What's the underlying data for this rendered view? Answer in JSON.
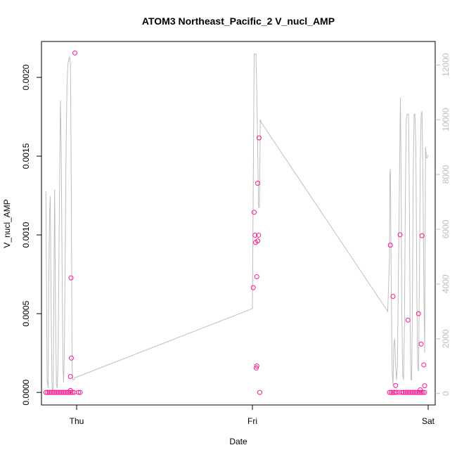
{
  "chart_data": {
    "type": "scatter",
    "title": "ATOM3 Northeast_Pacific_2 V_nucl_AMP",
    "xlabel": "Date",
    "ylabel": "V_nucl_AMP",
    "x_ticks": [
      "Thu",
      "Fri",
      "Sat"
    ],
    "y_ticks_left": [
      "0.0000",
      "0.0005",
      "0.0010",
      "0.0015",
      "0.0020"
    ],
    "y_ticks_right": [
      "0",
      "2000",
      "4000",
      "6000",
      "8000",
      "10000",
      "12000"
    ],
    "x_range": [
      -0.2,
      2.04
    ],
    "ylim_left": [
      -7.97e-05,
      0.0022279
    ],
    "ylim_right": [
      -418,
      12854
    ],
    "grid": false,
    "legend": "none",
    "colors": {
      "points": "#ff1493",
      "line": "#bebebe",
      "right_axis": "#bdbdbd"
    },
    "series": [
      {
        "axis": "left",
        "style": "points",
        "points": [
          [
            -0.175,
            0
          ],
          [
            -0.165,
            0
          ],
          [
            -0.155,
            0
          ],
          [
            -0.145,
            0
          ],
          [
            -0.135,
            0
          ],
          [
            -0.125,
            0
          ],
          [
            -0.115,
            0
          ],
          [
            -0.105,
            0
          ],
          [
            -0.095,
            0
          ],
          [
            -0.085,
            0
          ],
          [
            -0.075,
            0
          ],
          [
            -0.065,
            0
          ],
          [
            -0.055,
            0
          ],
          [
            -0.045,
            0
          ],
          [
            -0.035,
            0
          ],
          [
            -0.025,
            0
          ],
          [
            -0.015,
            0
          ],
          [
            -0.035,
            1.25e-05
          ],
          [
            -0.035,
            0.000101
          ],
          [
            -0.03,
            0.000218
          ],
          [
            -0.032,
            0.000727
          ],
          [
            -0.01,
            0.002155
          ],
          [
            0.01,
            0
          ],
          [
            0.02,
            0
          ],
          [
            1.005,
            0.000665
          ],
          [
            1.01,
            0.001144
          ],
          [
            1.015,
            0.000998
          ],
          [
            1.018,
            0.000952
          ],
          [
            1.022,
            0.000155
          ],
          [
            1.025,
            0.000168
          ],
          [
            1.025,
            0.000735
          ],
          [
            1.03,
            0.001328
          ],
          [
            1.03,
            0.000962
          ],
          [
            1.035,
            0.000998
          ],
          [
            1.038,
            0.001616
          ],
          [
            1.042,
            0
          ],
          [
            1.785,
            0.000935
          ],
          [
            1.8,
            0.00061
          ],
          [
            1.815,
            4.35e-05
          ],
          [
            1.84,
            0.001001
          ],
          [
            1.885,
            0.000459
          ],
          [
            1.945,
            0.0005
          ],
          [
            1.96,
            0.000307
          ],
          [
            1.965,
            0.000995
          ],
          [
            1.975,
            0.000175
          ],
          [
            1.98,
            4.25e-05
          ],
          [
            1.955,
            1.6e-05
          ],
          [
            1.78,
            0
          ],
          [
            1.79,
            0
          ],
          [
            1.8,
            0
          ],
          [
            1.81,
            0
          ],
          [
            1.82,
            0
          ],
          [
            1.835,
            0
          ],
          [
            1.85,
            0
          ],
          [
            1.86,
            0
          ],
          [
            1.87,
            0
          ],
          [
            1.88,
            0
          ],
          [
            1.89,
            0
          ],
          [
            1.9,
            0
          ],
          [
            1.91,
            0
          ],
          [
            1.92,
            0
          ],
          [
            1.93,
            0
          ],
          [
            1.94,
            0
          ],
          [
            1.95,
            0
          ],
          [
            1.96,
            0
          ],
          [
            1.97,
            0
          ],
          [
            1.98,
            0
          ]
        ]
      },
      {
        "axis": "right",
        "style": "line",
        "points": [
          [
            -0.175,
            7400
          ],
          [
            -0.168,
            500
          ],
          [
            -0.162,
            200
          ],
          [
            -0.158,
            4500
          ],
          [
            -0.154,
            6500
          ],
          [
            -0.15,
            7200
          ],
          [
            -0.145,
            3000
          ],
          [
            -0.14,
            300
          ],
          [
            -0.137,
            100
          ],
          [
            -0.133,
            200
          ],
          [
            -0.128,
            5000
          ],
          [
            -0.125,
            7450
          ],
          [
            -0.12,
            3000
          ],
          [
            -0.115,
            300
          ],
          [
            -0.11,
            200
          ],
          [
            -0.105,
            1500
          ],
          [
            -0.1,
            5500
          ],
          [
            -0.095,
            9000
          ],
          [
            -0.092,
            10700
          ],
          [
            -0.088,
            9000
          ],
          [
            -0.082,
            4000
          ],
          [
            -0.078,
            1000
          ],
          [
            -0.074,
            400
          ],
          [
            -0.07,
            1500
          ],
          [
            -0.065,
            5000
          ],
          [
            -0.06,
            9000
          ],
          [
            -0.055,
            11200
          ],
          [
            -0.05,
            12000
          ],
          [
            -0.045,
            12200
          ],
          [
            -0.04,
            12300
          ],
          [
            -0.035,
            12000
          ],
          [
            -0.03,
            7000
          ],
          [
            -0.026,
            1000
          ],
          [
            -0.022,
            500
          ],
          [
            -0.015,
            500
          ],
          [
            -0.008,
            600
          ],
          [
            0,
            600
          ],
          [
            1.0,
            3100
          ],
          [
            1.01,
            12400
          ],
          [
            1.02,
            12400
          ],
          [
            1.025,
            11000
          ],
          [
            1.03,
            9000
          ],
          [
            1.035,
            6800
          ],
          [
            1.04,
            6800
          ],
          [
            1.045,
            10000
          ],
          [
            1.05,
            9900
          ],
          [
            1.77,
            3000
          ],
          [
            1.78,
            5000
          ],
          [
            1.782,
            8000
          ],
          [
            1.785,
            8200
          ],
          [
            1.79,
            4000
          ],
          [
            1.795,
            800
          ],
          [
            1.8,
            300
          ],
          [
            1.805,
            1800
          ],
          [
            1.81,
            2000
          ],
          [
            1.815,
            1000
          ],
          [
            1.82,
            500
          ],
          [
            1.825,
            1000
          ],
          [
            1.83,
            4000
          ],
          [
            1.838,
            8500
          ],
          [
            1.842,
            10800
          ],
          [
            1.846,
            8000
          ],
          [
            1.85,
            3000
          ],
          [
            1.855,
            700
          ],
          [
            1.86,
            500
          ],
          [
            1.865,
            2500
          ],
          [
            1.87,
            7000
          ],
          [
            1.875,
            10000
          ],
          [
            1.88,
            10200
          ],
          [
            1.888,
            10200
          ],
          [
            1.893,
            7000
          ],
          [
            1.898,
            2000
          ],
          [
            1.902,
            500
          ],
          [
            1.906,
            500
          ],
          [
            1.91,
            3000
          ],
          [
            1.915,
            8000
          ],
          [
            1.92,
            10200
          ],
          [
            1.925,
            10200
          ],
          [
            1.93,
            9000
          ],
          [
            1.935,
            4000
          ],
          [
            1.94,
            1000
          ],
          [
            1.945,
            800
          ],
          [
            1.95,
            4000
          ],
          [
            1.955,
            8500
          ],
          [
            1.96,
            10200
          ],
          [
            1.965,
            10300
          ],
          [
            1.97,
            8000
          ],
          [
            1.975,
            4000
          ],
          [
            1.98,
            1500
          ],
          [
            1.985,
            9000
          ],
          [
            1.99,
            8600
          ],
          [
            1.995,
            8600
          ],
          [
            2.0,
            8700
          ]
        ]
      }
    ]
  }
}
